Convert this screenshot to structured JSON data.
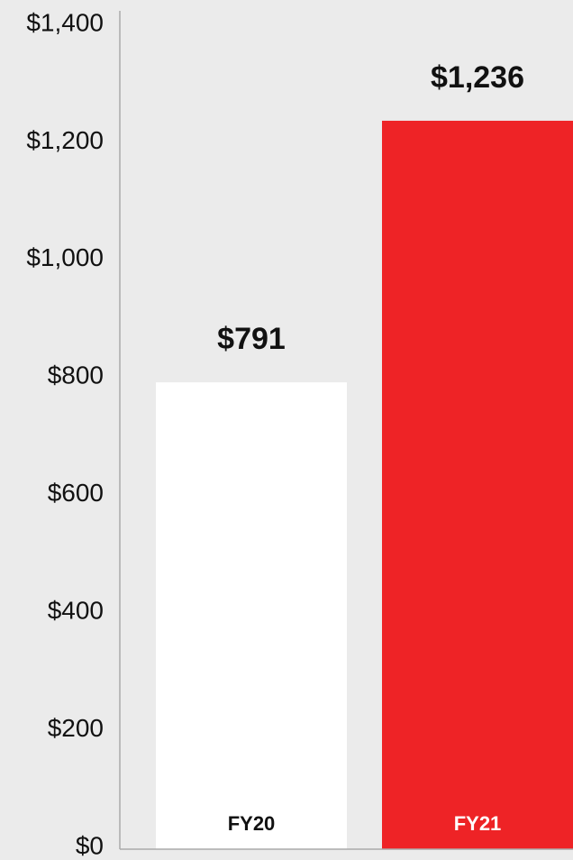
{
  "chart_data": {
    "type": "bar",
    "categories": [
      "FY20",
      "FY21"
    ],
    "values": [
      791,
      1236
    ],
    "value_labels": [
      "$791",
      "$1,236"
    ],
    "colors": [
      "#ffffff",
      "#ee2326"
    ],
    "ylim": [
      0,
      1400
    ],
    "yticks": [
      {
        "value": 0,
        "label": "$0"
      },
      {
        "value": 200,
        "label": "$200"
      },
      {
        "value": 400,
        "label": "$400"
      },
      {
        "value": 600,
        "label": "$600"
      },
      {
        "value": 800,
        "label": "$800"
      },
      {
        "value": 1000,
        "label": "$1,000"
      },
      {
        "value": 1200,
        "label": "$1,200"
      },
      {
        "value": 1400,
        "label": "$1,400"
      }
    ],
    "grid": false
  }
}
